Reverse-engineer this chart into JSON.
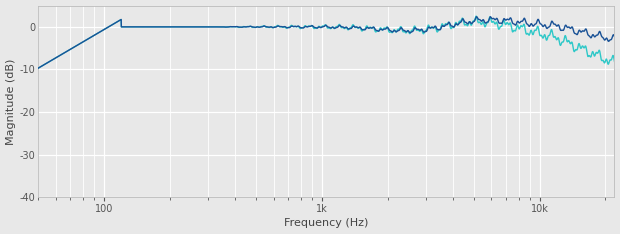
{
  "title": "",
  "xlabel": "Frequency (Hz)",
  "ylabel": "Magnitude (dB)",
  "xlim": [
    50,
    22000
  ],
  "ylim": [
    -40,
    5
  ],
  "yticks": [
    0,
    -10,
    -20,
    -30,
    -40
  ],
  "bg_color": "#e8e8e8",
  "plot_bg_color": "#e8e8e8",
  "grid_color": "#ffffff",
  "line_color_blue": "#1a5296",
  "line_color_green": "#2ec8c8",
  "line_width": 1.0,
  "figsize": [
    6.2,
    2.34
  ],
  "dpi": 100
}
